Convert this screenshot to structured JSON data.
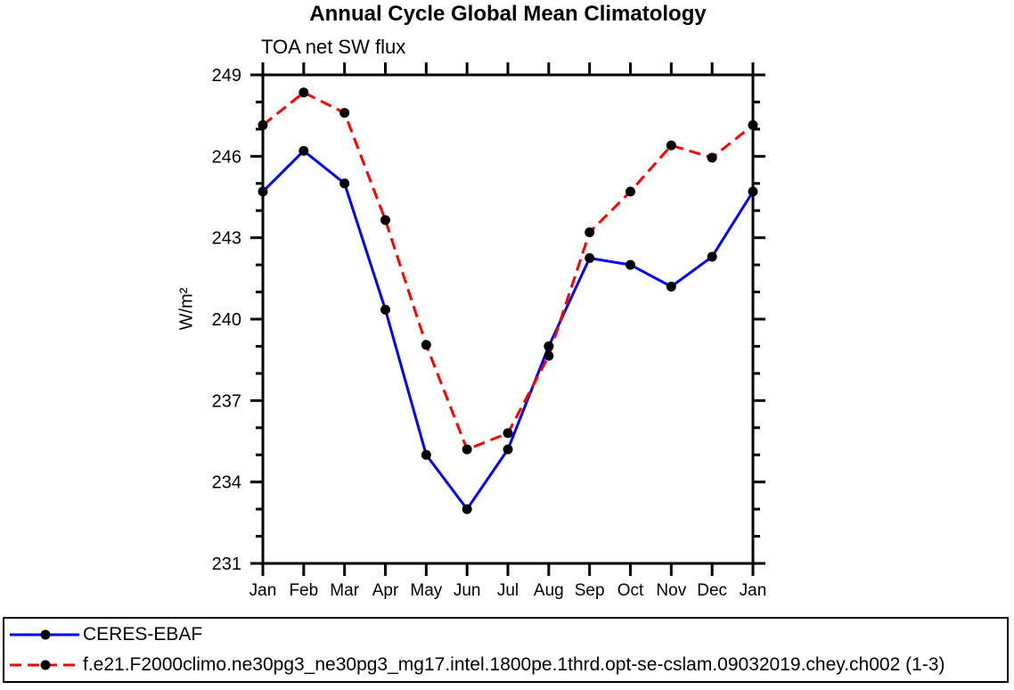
{
  "chart_data": {
    "type": "line",
    "title": "Annual Cycle Global Mean Climatology",
    "subtitle": "TOA net SW flux",
    "ylabel": "W/m²",
    "xlabel": "",
    "x_categories": [
      "Jan",
      "Feb",
      "Mar",
      "Apr",
      "May",
      "Jun",
      "Jul",
      "Aug",
      "Sep",
      "Oct",
      "Nov",
      "Dec",
      "Jan"
    ],
    "ylim": [
      231,
      249
    ],
    "ytick_major": [
      231,
      234,
      237,
      240,
      243,
      246,
      249
    ],
    "ytick_minor_step": 1,
    "grid": false,
    "frame": "box-with-outward-ticks",
    "legend_position": "bottom-box",
    "axis_color": "#000000",
    "series": [
      {
        "name": "CERES-EBAF",
        "color": "#0000ff",
        "line_style": "solid",
        "marker": "filled-circle",
        "marker_color": "#000000",
        "values": [
          244.7,
          246.2,
          245.0,
          240.35,
          235.0,
          233.0,
          235.2,
          239.0,
          242.25,
          242.0,
          241.2,
          242.3,
          244.7
        ]
      },
      {
        "name": "f.e21.F2000climo.ne30pg3_ne30pg3_mg17.intel.1800pe.1thrd.opt-se-cslam.09032019.chey.ch002 (1-3)",
        "color": "#ff0000",
        "line_style": "dashed",
        "marker": "filled-circle",
        "marker_color": "#000000",
        "values": [
          247.15,
          248.35,
          247.6,
          243.65,
          239.05,
          235.2,
          235.8,
          238.65,
          243.2,
          244.7,
          246.4,
          245.95,
          247.15
        ]
      }
    ]
  }
}
